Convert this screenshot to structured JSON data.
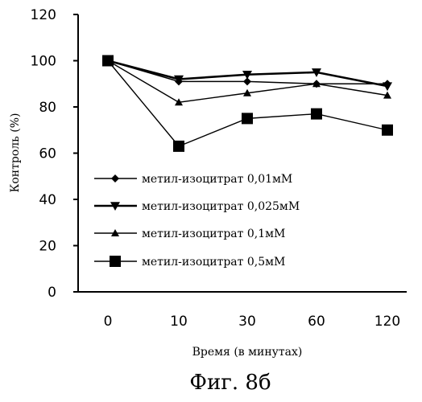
{
  "chart_data": {
    "type": "line",
    "categories": [
      "0",
      "10",
      "30",
      "60",
      "120"
    ],
    "xlabel": "Время (в минутах)",
    "ylabel": "Контроль (%)",
    "ylim": [
      0,
      120
    ],
    "yticks": [
      "0",
      "20",
      "40",
      "60",
      "80",
      "100",
      "120"
    ],
    "grid": false,
    "legend": "bottom-left inside plot",
    "series": [
      {
        "name": "метил-изоцитрат 0,01мМ",
        "marker": "diamond",
        "values": [
          100,
          91,
          91,
          90,
          90
        ]
      },
      {
        "name": "метил-изоцитрат 0,025мМ",
        "marker": "triangle-down",
        "values": [
          100,
          92,
          94,
          95,
          89
        ]
      },
      {
        "name": "метил-изоцитрат 0,1мМ",
        "marker": "triangle-up",
        "values": [
          100,
          82,
          86,
          90,
          85
        ]
      },
      {
        "name": "метил-изоцитрат 0,5мМ",
        "marker": "square",
        "values": [
          100,
          63,
          75,
          77,
          70
        ]
      }
    ]
  },
  "caption": "Фиг. 8б"
}
